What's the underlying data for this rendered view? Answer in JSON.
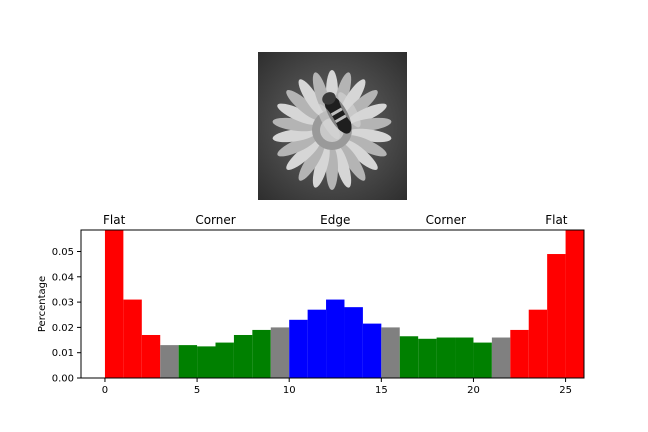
{
  "image": {
    "subject": "grayscale photo of an insect on a flower",
    "style": "grayscale"
  },
  "chart_data": {
    "type": "bar",
    "x": [
      0,
      1,
      2,
      3,
      4,
      5,
      6,
      7,
      8,
      9,
      10,
      11,
      12,
      13,
      14,
      15,
      16,
      17,
      18,
      19,
      20,
      21,
      22,
      23,
      24,
      25
    ],
    "values": [
      0.062,
      0.031,
      0.017,
      0.013,
      0.013,
      0.0125,
      0.014,
      0.017,
      0.019,
      0.02,
      0.023,
      0.027,
      0.031,
      0.028,
      0.0215,
      0.02,
      0.0165,
      0.0155,
      0.016,
      0.016,
      0.014,
      0.016,
      0.019,
      0.027,
      0.049,
      0.06
    ],
    "bar_colors": [
      "#ff0000",
      "#ff0000",
      "#ff0000",
      "#808080",
      "#008000",
      "#008000",
      "#008000",
      "#008000",
      "#008000",
      "#808080",
      "#0000ff",
      "#0000ff",
      "#0000ff",
      "#0000ff",
      "#0000ff",
      "#808080",
      "#008000",
      "#008000",
      "#008000",
      "#008000",
      "#008000",
      "#808080",
      "#ff0000",
      "#ff0000",
      "#ff0000",
      "#ff0000"
    ],
    "colors": {
      "flat": "#ff0000",
      "corner": "#008000",
      "edge": "#0000ff",
      "transition": "#808080"
    },
    "region_labels": [
      {
        "text": "Flat",
        "x": 0.5
      },
      {
        "text": "Corner",
        "x": 6
      },
      {
        "text": "Edge",
        "x": 12.5
      },
      {
        "text": "Corner",
        "x": 18.5
      },
      {
        "text": "Flat",
        "x": 24.5
      }
    ],
    "xticks": [
      0,
      5,
      10,
      15,
      20,
      25
    ],
    "yticks": [
      "0.00",
      "0.01",
      "0.02",
      "0.03",
      "0.04",
      "0.05"
    ],
    "xlim": [
      -1.3,
      26.0
    ],
    "ylim": [
      0,
      0.0585
    ],
    "title": "",
    "xlabel": "",
    "ylabel": "Percentage",
    "grid": false,
    "legend": "none"
  }
}
